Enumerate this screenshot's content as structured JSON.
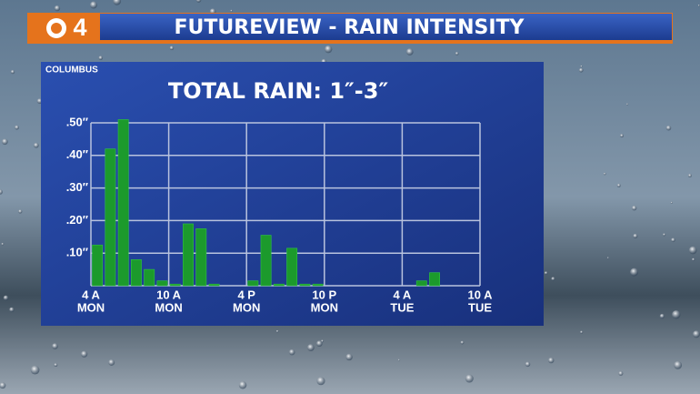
{
  "header": {
    "logo": "4",
    "title": "FUTUREVIEW - RAIN INTENSITY"
  },
  "chart_data": {
    "type": "bar",
    "subtitle": "COLUMBUS",
    "title": "TOTAL RAIN: 1″-3″",
    "color": "#1c9a2c",
    "x": [
      0,
      1,
      2,
      3,
      4,
      5,
      6,
      7,
      8,
      9,
      10,
      11,
      12,
      13,
      14,
      15,
      16,
      17,
      18,
      19,
      20,
      21,
      22,
      23,
      24,
      25,
      26,
      27,
      28,
      29
    ],
    "values": [
      0.125,
      0.42,
      0.51,
      0.08,
      0.05,
      0.015,
      0.005,
      0.19,
      0.175,
      0.005,
      0,
      0,
      0.015,
      0.155,
      0.005,
      0.115,
      0.005,
      0.005,
      0,
      0,
      0,
      0,
      0,
      0,
      0,
      0.015,
      0.04,
      0,
      0,
      0
    ],
    "xlim": [
      0,
      30
    ],
    "xticks": [
      {
        "value": 0,
        "label": "4 A"
      },
      {
        "value": 6,
        "label": "10 A"
      },
      {
        "value": 12,
        "label": "4 P"
      },
      {
        "value": 18,
        "label": "10 P"
      },
      {
        "value": 24,
        "label": "4 A"
      },
      {
        "value": 30,
        "label": "10 A"
      }
    ],
    "xtick_days": [
      "MON",
      "MON",
      "MON",
      "MON",
      "TUE",
      "TUE"
    ],
    "ylim": [
      0,
      0.5
    ],
    "yticks": [
      {
        "value": 0.1,
        "label": ".10″"
      },
      {
        "value": 0.2,
        "label": ".20″"
      },
      {
        "value": 0.3,
        "label": ".30″"
      },
      {
        "value": 0.4,
        "label": ".40″"
      },
      {
        "value": 0.5,
        "label": ".50″"
      }
    ],
    "grid": true
  }
}
